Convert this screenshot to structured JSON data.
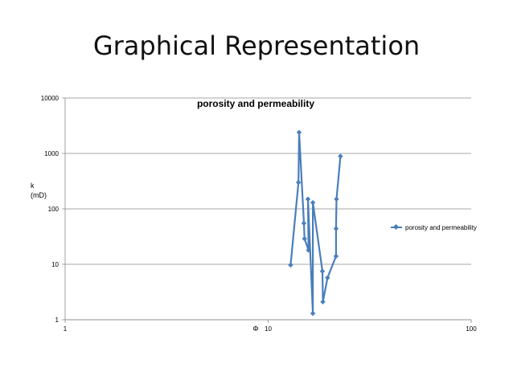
{
  "slide": {
    "title": "Graphical Representation"
  },
  "chart_data": {
    "type": "line",
    "title": "porosity and permeability",
    "xlabel": "Φ",
    "ylabel_lines": [
      "k",
      "(mD)"
    ],
    "x_scale": "log",
    "y_scale": "log",
    "xlim": [
      1,
      100
    ],
    "ylim": [
      1,
      10000
    ],
    "x_ticks": [
      1,
      10,
      100
    ],
    "x_tick_labels": [
      "1",
      "10",
      "100"
    ],
    "y_ticks": [
      1,
      10,
      100,
      1000,
      10000
    ],
    "y_tick_labels": [
      "1",
      "10",
      "100",
      "1000",
      "10000"
    ],
    "grid": "horizontal",
    "legend": "right",
    "series": [
      {
        "name": "porosity and permeability",
        "color": "#4a7ebb",
        "marker": "diamond",
        "points": [
          [
            12.9,
            9.7
          ],
          [
            14.1,
            300
          ],
          [
            14.2,
            2400
          ],
          [
            15.0,
            55
          ],
          [
            15.1,
            29
          ],
          [
            15.8,
            18
          ],
          [
            15.7,
            150
          ],
          [
            16.6,
            1.3
          ],
          [
            16.6,
            130
          ],
          [
            18.5,
            7.5
          ],
          [
            18.6,
            2.1
          ],
          [
            19.6,
            5.7
          ],
          [
            21.6,
            14
          ],
          [
            21.6,
            44
          ],
          [
            21.7,
            150
          ],
          [
            22.7,
            890
          ]
        ]
      }
    ]
  }
}
